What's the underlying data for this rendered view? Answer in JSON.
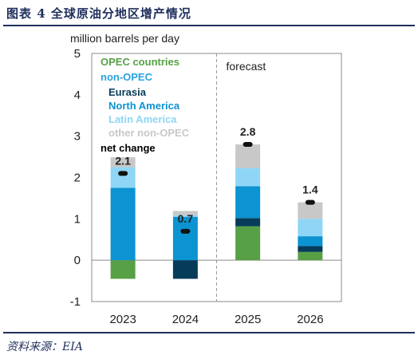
{
  "header": {
    "title": "图表 4 全球原油分地区增产情况"
  },
  "footer": {
    "source": "资料来源：EIA"
  },
  "chart_data": {
    "type": "bar",
    "stacked": true,
    "ylabel": "million barrels per day",
    "ylim": [
      -1,
      5
    ],
    "yticks": [
      "-1",
      "0",
      "1",
      "2",
      "3",
      "4",
      "5"
    ],
    "categories": [
      "2023",
      "2024",
      "2025",
      "2026"
    ],
    "forecast_label": "forecast",
    "forecast_starts_at": "2025",
    "series": [
      {
        "name": "OPEC countries",
        "color": "#57a045",
        "values": [
          -0.45,
          0.0,
          0.82,
          0.2
        ]
      },
      {
        "name": "Eurasia",
        "color": "#063c59",
        "values": [
          0.0,
          -0.45,
          0.2,
          0.14
        ]
      },
      {
        "name": "North America",
        "color": "#0c93d2",
        "values": [
          1.75,
          1.05,
          0.77,
          0.24
        ]
      },
      {
        "name": "Latin America",
        "color": "#8fd6f6",
        "values": [
          0.5,
          0.04,
          0.44,
          0.42
        ]
      },
      {
        "name": "other non-OPEC",
        "color": "#c8c8c8",
        "values": [
          0.24,
          0.1,
          0.57,
          0.4
        ]
      }
    ],
    "net_change": {
      "name": "net change",
      "values": [
        2.1,
        0.7,
        2.8,
        1.4
      ],
      "labels": [
        "2.1",
        "0.7",
        "2.8",
        "1.4"
      ]
    },
    "legend": {
      "position": "top-left",
      "entries": [
        {
          "text": "OPEC countries",
          "color": "#57a045"
        },
        {
          "text": "non-OPEC",
          "color": "#2aa3e0"
        },
        {
          "text": "Eurasia",
          "color": "#063c59"
        },
        {
          "text": "North America",
          "color": "#0c93d2"
        },
        {
          "text": "Latin America",
          "color": "#8fd6f6"
        },
        {
          "text": "other non-OPEC",
          "color": "#c8c8c8"
        },
        {
          "text": "net change",
          "color": "#000000"
        }
      ]
    },
    "grid": false
  }
}
